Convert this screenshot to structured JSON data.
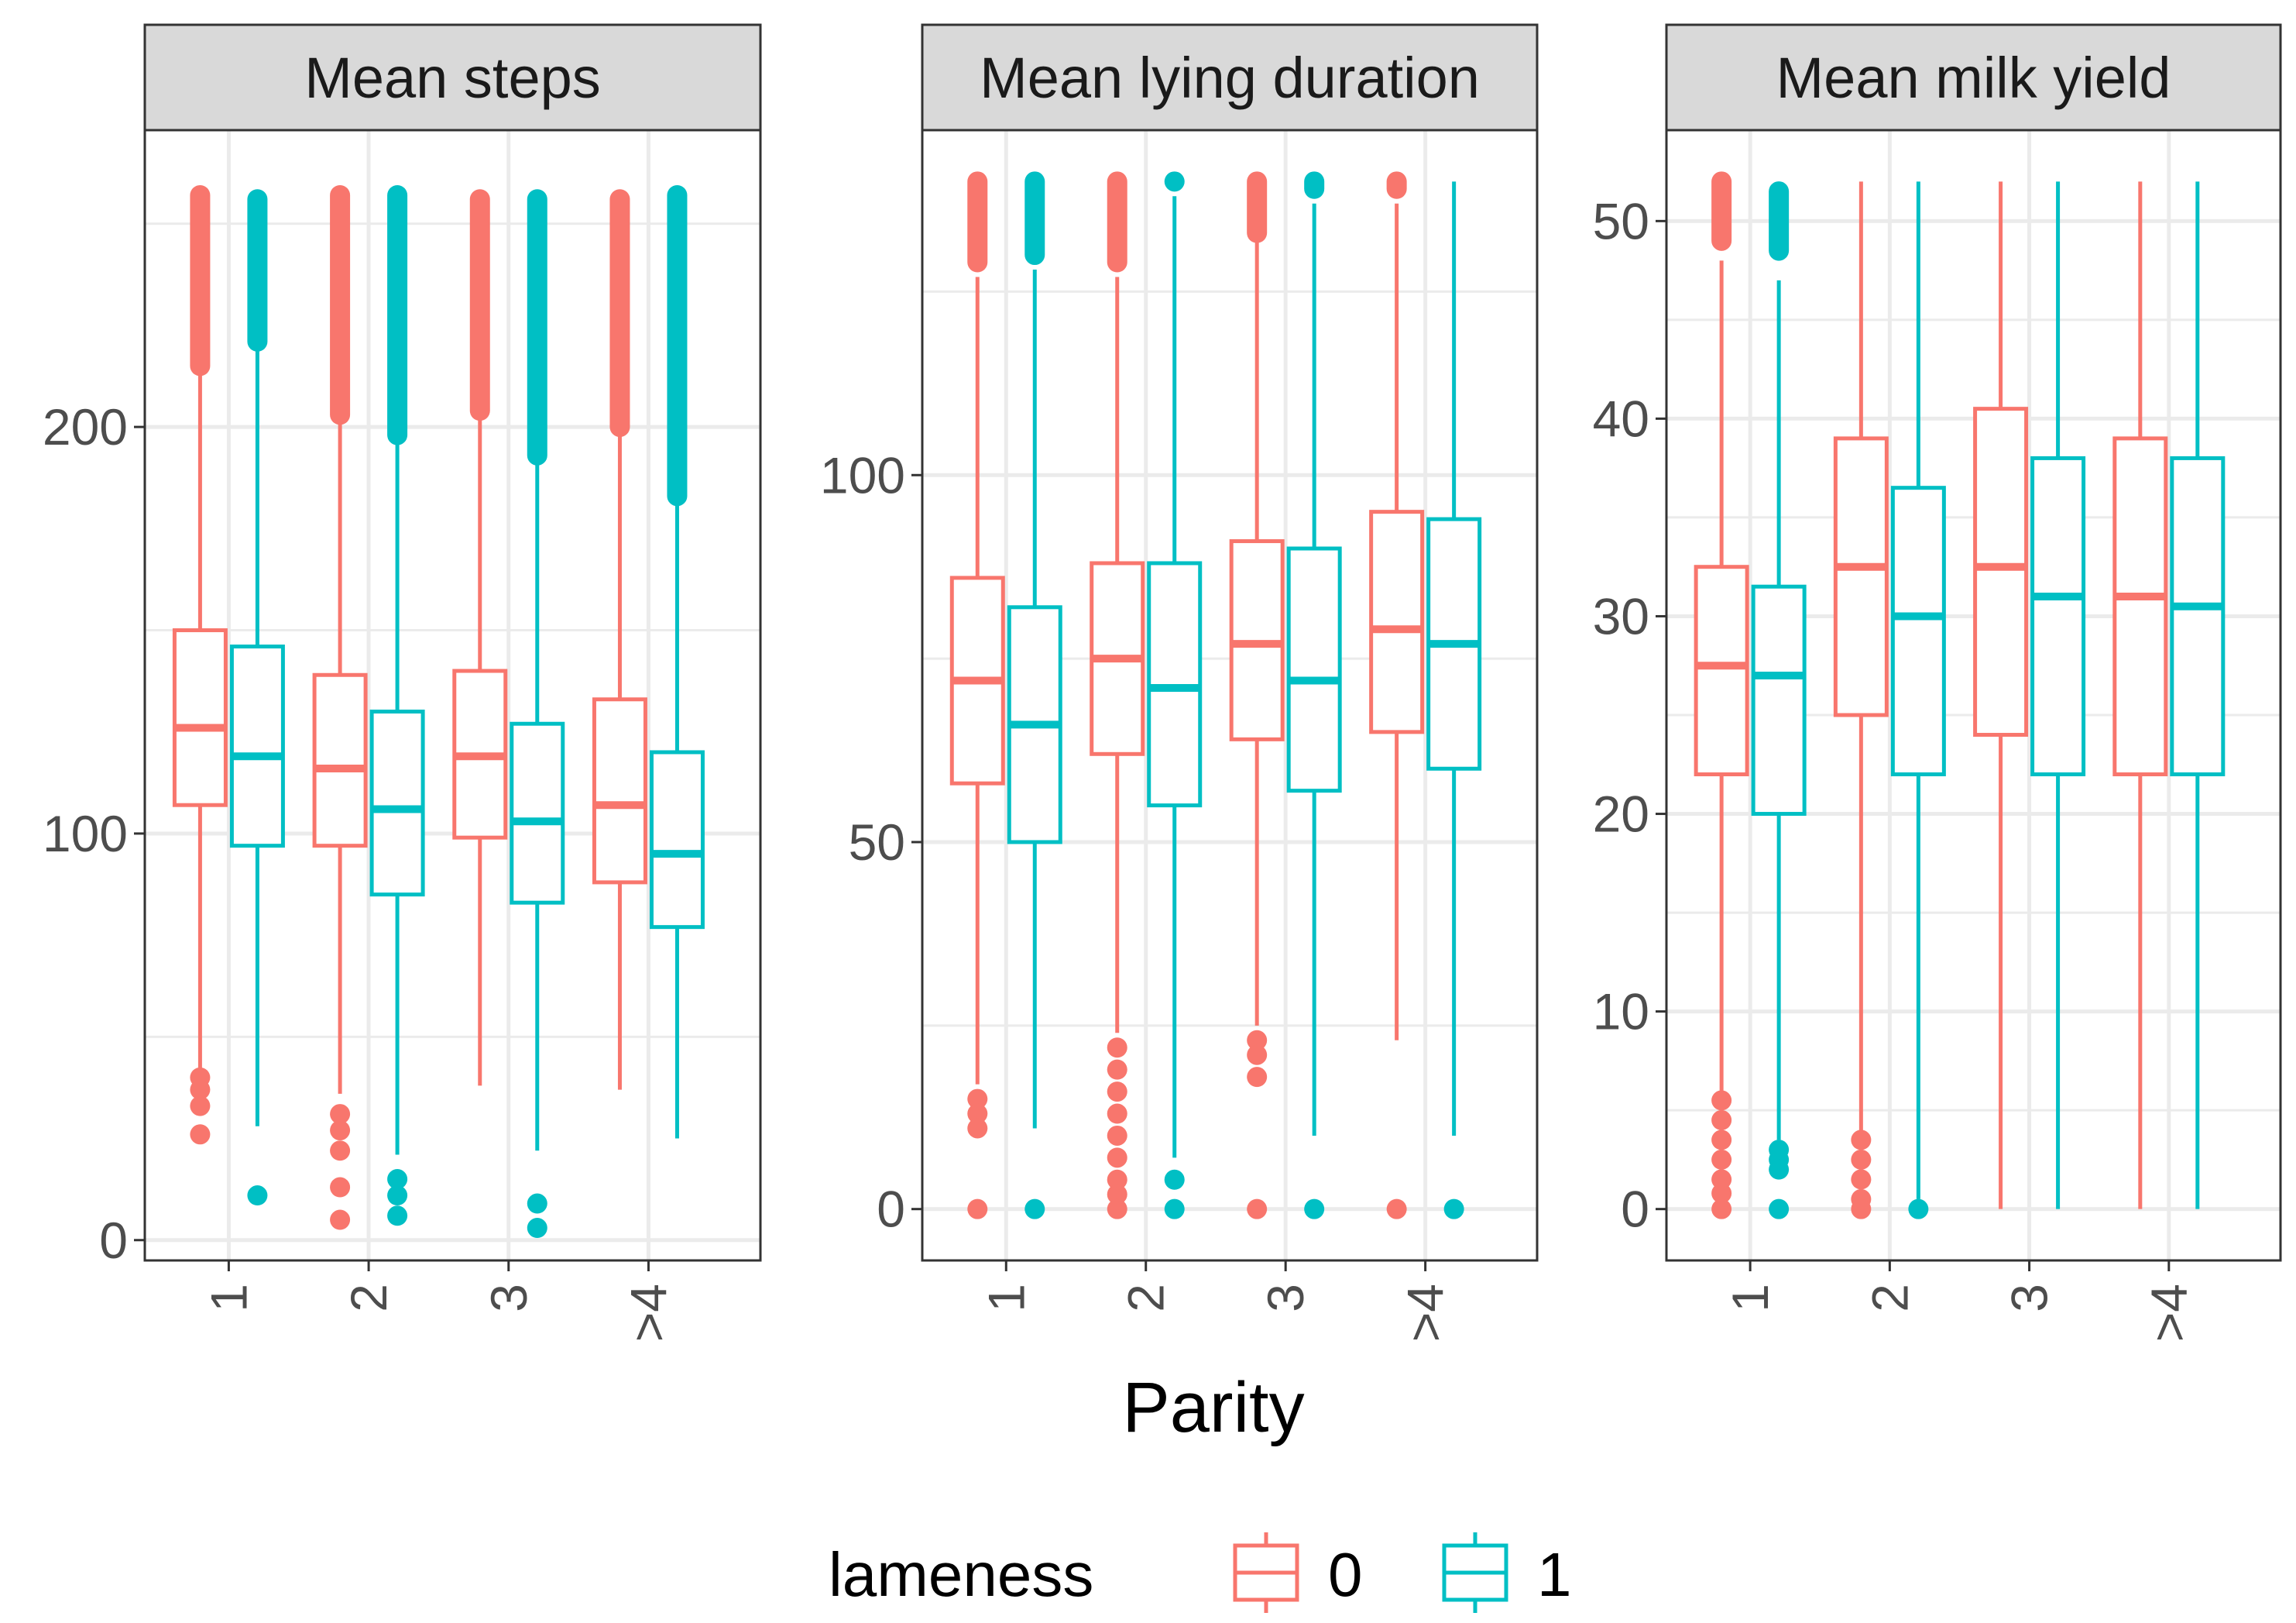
{
  "chart_data": {
    "type": "boxplot",
    "xlabel": "Parity",
    "categories": [
      "1",
      "2",
      "3",
      ">4"
    ],
    "legend": {
      "title": "lameness",
      "position": "bottom",
      "entries": [
        {
          "label": "0",
          "color": "#F8766D"
        },
        {
          "label": "1",
          "color": "#00BFC4"
        }
      ]
    },
    "colors": {
      "lameness_0": "#F8766D",
      "lameness_1": "#00BFC4",
      "strip_fill": "#D9D9D9",
      "grid": "#EBEBEB",
      "panel_border": "#333333"
    },
    "panels": [
      {
        "title": "Mean steps",
        "ylim": [
          -5,
          273
        ],
        "yticks": [
          0,
          100,
          200
        ],
        "ytick_labels": [
          "0",
          "100",
          "200"
        ],
        "minor_yticks": [
          50,
          150,
          250
        ],
        "groups": [
          {
            "category": "1",
            "lameness": "0",
            "whisker_low": 42,
            "q1": 107,
            "median": 126,
            "q3": 150,
            "whisker_high": 213,
            "outliers_low": [
              40,
              37,
              33,
              26
            ],
            "outliers_high_range": [
              215,
              257
            ]
          },
          {
            "category": "1",
            "lameness": "1",
            "whisker_low": 28,
            "q1": 97,
            "median": 119,
            "q3": 146,
            "whisker_high": 219,
            "outliers_low": [
              11
            ],
            "outliers_high_range": [
              221,
              256
            ]
          },
          {
            "category": "2",
            "lameness": "0",
            "whisker_low": 36,
            "q1": 97,
            "median": 116,
            "q3": 139,
            "whisker_high": 201,
            "outliers_low": [
              31,
              27,
              22,
              13,
              5
            ],
            "outliers_high_range": [
              203,
              257
            ]
          },
          {
            "category": "2",
            "lameness": "1",
            "whisker_low": 21,
            "q1": 85,
            "median": 106,
            "q3": 130,
            "whisker_high": 196,
            "outliers_low": [
              15,
              11,
              6
            ],
            "outliers_high_range": [
              198,
              257
            ]
          },
          {
            "category": "3",
            "lameness": "0",
            "whisker_low": 38,
            "q1": 99,
            "median": 119,
            "q3": 140,
            "whisker_high": 202,
            "outliers_low": [],
            "outliers_high_range": [
              204,
              256
            ]
          },
          {
            "category": "3",
            "lameness": "1",
            "whisker_low": 22,
            "q1": 83,
            "median": 103,
            "q3": 127,
            "whisker_high": 191,
            "outliers_low": [
              9,
              3
            ],
            "outliers_high_range": [
              193,
              256
            ]
          },
          {
            "category": ">4",
            "lameness": "0",
            "whisker_low": 37,
            "q1": 88,
            "median": 107,
            "q3": 133,
            "whisker_high": 198,
            "outliers_low": [],
            "outliers_high_range": [
              200,
              256
            ]
          },
          {
            "category": ">4",
            "lameness": "1",
            "whisker_low": 25,
            "q1": 77,
            "median": 95,
            "q3": 120,
            "whisker_high": 181,
            "outliers_low": [],
            "outliers_high_range": [
              183,
              257
            ]
          }
        ]
      },
      {
        "title": "Mean lying duration",
        "ylim": [
          -7,
          147
        ],
        "yticks": [
          0,
          50,
          100
        ],
        "ytick_labels": [
          "0",
          "50",
          "100"
        ],
        "minor_yticks": [
          25,
          75,
          125
        ],
        "groups": [
          {
            "category": "1",
            "lameness": "0",
            "whisker_low": 17,
            "q1": 58,
            "median": 72,
            "q3": 86,
            "whisker_high": 127,
            "outliers_low": [
              15,
              13,
              11,
              0
            ],
            "outliers_high_range": [
              129,
              140
            ]
          },
          {
            "category": "1",
            "lameness": "1",
            "whisker_low": 11,
            "q1": 50,
            "median": 66,
            "q3": 82,
            "whisker_high": 128,
            "outliers_low": [
              0
            ],
            "outliers_high_range": [
              130,
              140
            ]
          },
          {
            "category": "2",
            "lameness": "0",
            "whisker_low": 24,
            "q1": 62,
            "median": 75,
            "q3": 88,
            "whisker_high": 127,
            "outliers_low": [
              22,
              19,
              16,
              13,
              10,
              7,
              4,
              2,
              0
            ],
            "outliers_high_range": [
              129,
              140
            ]
          },
          {
            "category": "2",
            "lameness": "1",
            "whisker_low": 7,
            "q1": 55,
            "median": 71,
            "q3": 88,
            "whisker_high": 138,
            "outliers_low": [
              4,
              0
            ],
            "outliers_high_range": [
              140,
              140
            ]
          },
          {
            "category": "3",
            "lameness": "0",
            "whisker_low": 25,
            "q1": 64,
            "median": 77,
            "q3": 91,
            "whisker_high": 132,
            "outliers_low": [
              23,
              21,
              18,
              0
            ],
            "outliers_high_range": [
              133,
              140
            ]
          },
          {
            "category": "3",
            "lameness": "1",
            "whisker_low": 10,
            "q1": 57,
            "median": 72,
            "q3": 90,
            "whisker_high": 137,
            "outliers_low": [
              0
            ],
            "outliers_high_range": [
              139,
              140
            ]
          },
          {
            "category": ">4",
            "lameness": "0",
            "whisker_low": 23,
            "q1": 65,
            "median": 79,
            "q3": 95,
            "whisker_high": 137,
            "outliers_low": [
              0
            ],
            "outliers_high_range": [
              139,
              140
            ]
          },
          {
            "category": ">4",
            "lameness": "1",
            "whisker_low": 10,
            "q1": 60,
            "median": 77,
            "q3": 94,
            "whisker_high": 140,
            "outliers_low": [
              0
            ],
            "outliers_high_range": []
          }
        ]
      },
      {
        "title": "Mean milk yield",
        "ylim": [
          -2.6,
          54.6
        ],
        "yticks": [
          0,
          10,
          20,
          30,
          40,
          50
        ],
        "ytick_labels": [
          "0",
          "10",
          "20",
          "30",
          "40",
          "50"
        ],
        "minor_yticks": [
          5,
          15,
          25,
          35,
          45
        ],
        "groups": [
          {
            "category": "1",
            "lameness": "0",
            "whisker_low": 6,
            "q1": 22,
            "median": 27.5,
            "q3": 32.5,
            "whisker_high": 48,
            "outliers_low": [
              5.5,
              4.5,
              3.5,
              2.5,
              1.5,
              0.8,
              0
            ],
            "outliers_high_range": [
              49,
              52
            ]
          },
          {
            "category": "1",
            "lameness": "1",
            "whisker_low": 3.5,
            "q1": 20,
            "median": 27,
            "q3": 31.5,
            "whisker_high": 47,
            "outliers_low": [
              3,
              2.5,
              2,
              0
            ],
            "outliers_high_range": [
              48.5,
              51.5
            ]
          },
          {
            "category": "2",
            "lameness": "0",
            "whisker_low": 3.7,
            "q1": 25,
            "median": 32.5,
            "q3": 39,
            "whisker_high": 52,
            "outliers_low": [
              3.5,
              2.5,
              1.5,
              0.5,
              0
            ],
            "outliers_high_range": []
          },
          {
            "category": "2",
            "lameness": "1",
            "whisker_low": 0.5,
            "q1": 22,
            "median": 30,
            "q3": 36.5,
            "whisker_high": 52,
            "outliers_low": [
              0
            ],
            "outliers_high_range": []
          },
          {
            "category": "3",
            "lameness": "0",
            "whisker_low": 0,
            "q1": 24,
            "median": 32.5,
            "q3": 40.5,
            "whisker_high": 52,
            "outliers_low": [],
            "outliers_high_range": []
          },
          {
            "category": "3",
            "lameness": "1",
            "whisker_low": 0,
            "q1": 22,
            "median": 31,
            "q3": 38,
            "whisker_high": 52,
            "outliers_low": [],
            "outliers_high_range": []
          },
          {
            "category": ">4",
            "lameness": "0",
            "whisker_low": 0,
            "q1": 22,
            "median": 31,
            "q3": 39,
            "whisker_high": 52,
            "outliers_low": [],
            "outliers_high_range": []
          },
          {
            "category": ">4",
            "lameness": "1",
            "whisker_low": 0,
            "q1": 22,
            "median": 30.5,
            "q3": 38,
            "whisker_high": 52,
            "outliers_low": [],
            "outliers_high_range": []
          }
        ]
      }
    ]
  }
}
